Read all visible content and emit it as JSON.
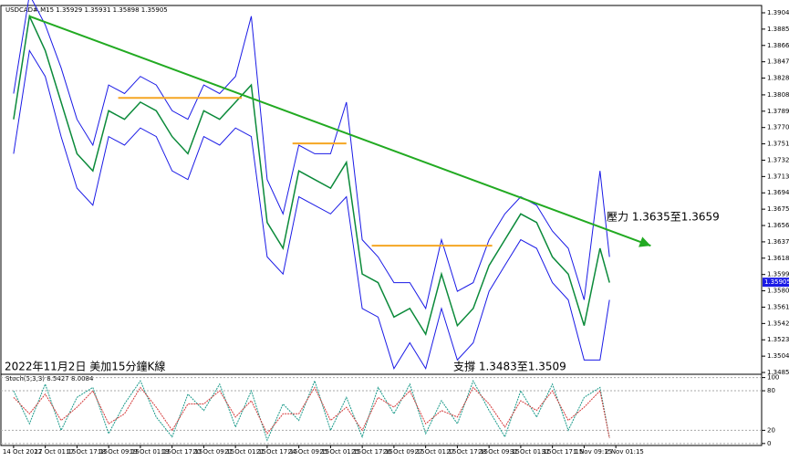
{
  "chart_data": [
    {
      "type": "line",
      "title": "USDCAD#,M15 1.35929 1.35931 1.35898 1.35905",
      "x": [
        0,
        5,
        10,
        15,
        20,
        25,
        30,
        35,
        40,
        45,
        50,
        55,
        60,
        65,
        70,
        75,
        80,
        85,
        90,
        95,
        100,
        105,
        110,
        115,
        120,
        125,
        130,
        135,
        140,
        145,
        150,
        155,
        160,
        165,
        170,
        175,
        180,
        185,
        188
      ],
      "series": [
        {
          "color": "#0b8a3a",
          "values": [
            1.378,
            1.39,
            1.386,
            1.38,
            1.374,
            1.372,
            1.379,
            1.378,
            1.38,
            1.379,
            1.376,
            1.374,
            1.379,
            1.378,
            1.38,
            1.382,
            1.366,
            1.363,
            1.372,
            1.371,
            1.37,
            1.373,
            1.36,
            1.359,
            1.355,
            1.356,
            1.353,
            1.36,
            1.354,
            1.356,
            1.361,
            1.364,
            1.367,
            1.366,
            1.362,
            1.36,
            1.354,
            1.363,
            1.359
          ]
        },
        {
          "color": "#1a1ae6",
          "values": [
            1.381,
            1.3925,
            1.389,
            1.384,
            1.378,
            1.375,
            1.382,
            1.381,
            1.383,
            1.382,
            1.379,
            1.378,
            1.382,
            1.381,
            1.383,
            1.39,
            1.371,
            1.367,
            1.375,
            1.374,
            1.374,
            1.38,
            1.364,
            1.362,
            1.359,
            1.359,
            1.356,
            1.364,
            1.358,
            1.359,
            1.364,
            1.367,
            1.369,
            1.368,
            1.365,
            1.363,
            1.357,
            1.372,
            1.362
          ]
        },
        {
          "color": "#1a1ae6",
          "values": [
            1.374,
            1.386,
            1.383,
            1.376,
            1.37,
            1.368,
            1.376,
            1.375,
            1.377,
            1.376,
            1.372,
            1.371,
            1.376,
            1.375,
            1.377,
            1.376,
            1.362,
            1.36,
            1.369,
            1.368,
            1.367,
            1.369,
            1.356,
            1.355,
            1.349,
            1.352,
            1.349,
            1.356,
            1.35,
            1.352,
            1.358,
            1.361,
            1.364,
            1.363,
            1.359,
            1.357,
            1.35,
            1.35,
            1.357
          ]
        }
      ],
      "trendline": {
        "color": "#22aa22",
        "x": [
          5,
          201
        ],
        "y": [
          1.39,
          1.3633
        ]
      },
      "levels": [
        {
          "color": "#f5a623",
          "value": 1.3805,
          "x": [
            33,
            72
          ]
        },
        {
          "color": "#f5a623",
          "value": 1.3752,
          "x": [
            88,
            105
          ]
        },
        {
          "color": "#f5a623",
          "value": 1.3633,
          "x": [
            113,
            151
          ]
        }
      ],
      "current_price": 1.35905,
      "annotations": [
        "壓力 1.3635至1.3659",
        "支撐 1.3483至1.3509",
        "2022年11月2日 美加15分鐘K線"
      ],
      "xlim": [
        -4,
        236
      ],
      "ylim": [
        1.34834,
        1.39125
      ],
      "yticks": [
        {
          "value": 1.3904,
          "label": "1.39040"
        },
        {
          "value": 1.3885,
          "label": "1.38850"
        },
        {
          "value": 1.3866,
          "label": "1.38660"
        },
        {
          "value": 1.3847,
          "label": "1.38470"
        },
        {
          "value": 1.3828,
          "label": "1.38280"
        },
        1.38085,
        1.37895,
        1.37705,
        1.37515,
        1.37325,
        1.37135,
        1.36945,
        1.36755,
        1.36565,
        1.36375,
        1.36185,
        1.35995,
        1.35805,
        1.35615,
        1.35425,
        1.35235,
        1.35045,
        1.34855
      ],
      "xticks": [
        {
          "value": 0,
          "label": "14 Oct 2022"
        },
        {
          "value": 10,
          "label": "17 Oct 01:15"
        },
        {
          "value": 20,
          "label": "17 Oct 17:15"
        },
        {
          "value": 30,
          "label": "18 Oct 09:15"
        },
        {
          "value": 40,
          "label": "19 Oct 01:15"
        },
        {
          "value": 50,
          "label": "19 Oct 17:15"
        },
        {
          "value": 60,
          "label": "20 Oct 09:15"
        },
        {
          "value": 70,
          "label": "21 Oct 01:15"
        },
        {
          "value": 80,
          "label": "21 Oct 17:15"
        },
        {
          "value": 90,
          "label": "24 Oct 09:15"
        },
        {
          "value": 100,
          "label": "25 Oct 01:15"
        },
        {
          "value": 110,
          "label": "25 Oct 17:15"
        },
        {
          "value": 120,
          "label": "26 Oct 09:15"
        },
        {
          "value": 130,
          "label": "27 Oct 01:15"
        },
        {
          "value": 140,
          "label": "27 Oct 17:15"
        },
        {
          "value": 150,
          "label": "28 Oct 09:15"
        },
        {
          "value": 160,
          "label": "31 Oct 01:15"
        },
        {
          "value": 170,
          "label": "31 Oct 17:15"
        },
        {
          "value": 180,
          "label": "1 Nov 09:15"
        },
        {
          "value": 190,
          "label": "2 Nov 01:15"
        }
      ]
    },
    {
      "type": "line",
      "title": "Stoch(5,3,3) 8.5427 8.0084",
      "x": [
        0,
        5,
        10,
        15,
        20,
        25,
        30,
        35,
        40,
        45,
        50,
        55,
        60,
        65,
        70,
        75,
        80,
        85,
        90,
        95,
        100,
        105,
        110,
        115,
        120,
        125,
        130,
        135,
        140,
        145,
        150,
        155,
        160,
        165,
        170,
        175,
        180,
        185,
        188
      ],
      "series": [
        {
          "color": "#1a9a8a",
          "values": [
            80,
            30,
            90,
            20,
            70,
            85,
            15,
            60,
            95,
            40,
            10,
            75,
            50,
            90,
            25,
            80,
            5,
            60,
            35,
            95,
            20,
            70,
            10,
            85,
            45,
            90,
            15,
            65,
            30,
            95,
            50,
            10,
            80,
            40,
            90,
            20,
            70,
            85,
            8.5427
          ]
        },
        {
          "color": "#d43a3a",
          "values": [
            70,
            45,
            75,
            35,
            55,
            80,
            30,
            45,
            85,
            55,
            20,
            60,
            60,
            80,
            40,
            65,
            15,
            45,
            45,
            85,
            35,
            55,
            20,
            70,
            55,
            80,
            30,
            50,
            40,
            85,
            60,
            25,
            65,
            50,
            80,
            35,
            55,
            80,
            8.0084
          ]
        }
      ],
      "ylim": [
        -3,
        105
      ],
      "yticks": [
        100,
        80,
        20,
        0
      ]
    }
  ]
}
